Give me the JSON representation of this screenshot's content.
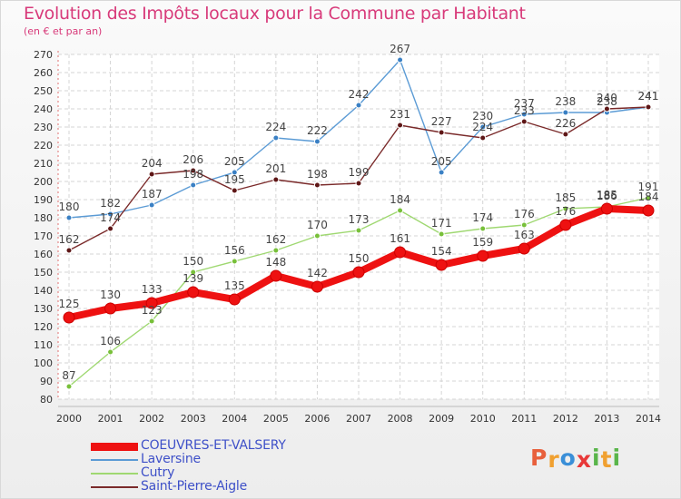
{
  "header": {
    "title": "Evolution des Impôts locaux pour la Commune par Habitant",
    "subtitle": "(en € et par an)"
  },
  "logo": {
    "letters": [
      "P",
      "r",
      "o",
      "x",
      "i",
      "t",
      "i"
    ],
    "colors": [
      "#e8603c",
      "#f0a030",
      "#3a8fd8",
      "#e83838",
      "#59b54a",
      "#f0a030",
      "#59b54a"
    ]
  },
  "chart_data": {
    "type": "line",
    "title": "Evolution des Impôts locaux pour la Commune par Habitant",
    "subtitle": "(en € et par an)",
    "xlabel": "",
    "ylabel": "",
    "x": [
      "2000",
      "2001",
      "2002",
      "2003",
      "2004",
      "2005",
      "2006",
      "2007",
      "2008",
      "2009",
      "2010",
      "2011",
      "2012",
      "2013",
      "2014"
    ],
    "ylim": [
      80,
      270
    ],
    "yticks": [
      80,
      90,
      100,
      110,
      120,
      130,
      140,
      150,
      160,
      170,
      180,
      190,
      200,
      210,
      220,
      230,
      240,
      250,
      260,
      270
    ],
    "grid": true,
    "legend_position": "bottom-left",
    "series": [
      {
        "name": "COEUVRES-ET-VALSERY",
        "color": "#ee1111",
        "marker_color": "#dd1010",
        "emphasis": true,
        "values": [
          125,
          130,
          133,
          139,
          135,
          148,
          142,
          150,
          161,
          154,
          159,
          163,
          176,
          185,
          184
        ],
        "labels": [
          "125",
          "130",
          "133",
          "139",
          "135",
          "148",
          "142",
          "150",
          "161",
          "154",
          "159",
          "163",
          "176",
          "185",
          "184"
        ]
      },
      {
        "name": "Laversine",
        "color": "#5b9bd5",
        "marker_color": "#3a80c4",
        "emphasis": false,
        "values": [
          180,
          182,
          187,
          198,
          205,
          224,
          222,
          242,
          267,
          205,
          230,
          237,
          238,
          238,
          241
        ],
        "labels": [
          "180",
          "182",
          "187",
          "198",
          "205",
          "224",
          "222",
          "242",
          "267",
          "205",
          "230",
          "237",
          "238",
          "238",
          "241"
        ]
      },
      {
        "name": "Cutry",
        "color": "#9fd871",
        "marker_color": "#78c03a",
        "emphasis": false,
        "values": [
          87,
          106,
          123,
          150,
          156,
          162,
          170,
          173,
          184,
          171,
          174,
          176,
          185,
          186,
          191
        ],
        "labels": [
          "87",
          "106",
          "123",
          "150",
          "156",
          "162",
          "170",
          "173",
          "184",
          "171",
          "174",
          "176",
          "185",
          "186",
          "191"
        ]
      },
      {
        "name": "Saint-Pierre-Aigle",
        "color": "#7a2a2a",
        "marker_color": "#5e1616",
        "emphasis": false,
        "values": [
          162,
          174,
          204,
          206,
          195,
          201,
          198,
          199,
          231,
          227,
          224,
          233,
          226,
          240,
          241
        ],
        "labels": [
          "162",
          "174",
          "204",
          "206",
          "195",
          "201",
          "198",
          "199",
          "231",
          "227",
          "224",
          "233",
          "226",
          "240",
          "241"
        ]
      }
    ]
  }
}
